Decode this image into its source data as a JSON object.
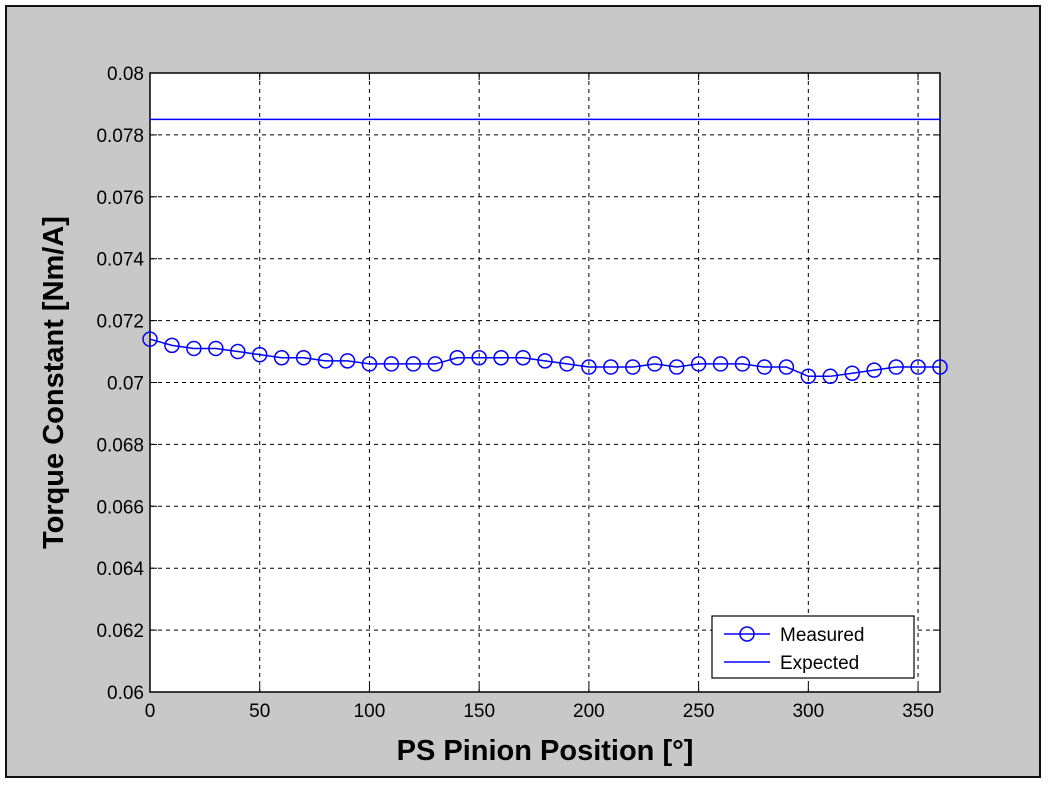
{
  "chart_data": {
    "type": "line",
    "xlabel": "PS Pinion Position [°]",
    "ylabel": "Torque Constant [Nm/A]",
    "xlim": [
      0,
      360
    ],
    "ylim": [
      0.06,
      0.08
    ],
    "xticks": [
      0,
      50,
      100,
      150,
      200,
      250,
      300,
      350
    ],
    "xtick_labels": [
      "0",
      "50",
      "100",
      "150",
      "200",
      "250",
      "300",
      "350"
    ],
    "yticks": [
      0.06,
      0.062,
      0.064,
      0.066,
      0.068,
      0.07,
      0.072,
      0.074,
      0.076,
      0.078,
      0.08
    ],
    "ytick_labels": [
      "0.06",
      "0.062",
      "0.064",
      "0.066",
      "0.068",
      "0.07",
      "0.072",
      "0.074",
      "0.076",
      "0.078",
      "0.08"
    ],
    "grid": true,
    "legend_position": "bottom-right",
    "series": [
      {
        "name": "Measured",
        "marker": "circle",
        "color": "#0000ff",
        "x": [
          0,
          10,
          20,
          30,
          40,
          50,
          60,
          70,
          80,
          90,
          100,
          110,
          120,
          130,
          140,
          150,
          160,
          170,
          180,
          190,
          200,
          210,
          220,
          230,
          240,
          250,
          260,
          270,
          280,
          290,
          300,
          310,
          320,
          330,
          340,
          350,
          360
        ],
        "y": [
          0.0714,
          0.0712,
          0.0711,
          0.0711,
          0.071,
          0.0709,
          0.0708,
          0.0708,
          0.0707,
          0.0707,
          0.0706,
          0.0706,
          0.0706,
          0.0706,
          0.0708,
          0.0708,
          0.0708,
          0.0708,
          0.0707,
          0.0706,
          0.0705,
          0.0705,
          0.0705,
          0.0706,
          0.0705,
          0.0706,
          0.0706,
          0.0706,
          0.0705,
          0.0705,
          0.0702,
          0.0702,
          0.0703,
          0.0704,
          0.0705,
          0.0705,
          0.0705
        ]
      },
      {
        "name": "Expected",
        "marker": "none",
        "color": "#0000ff",
        "x": [
          0,
          360
        ],
        "y": [
          0.0785,
          0.0785
        ]
      }
    ]
  }
}
